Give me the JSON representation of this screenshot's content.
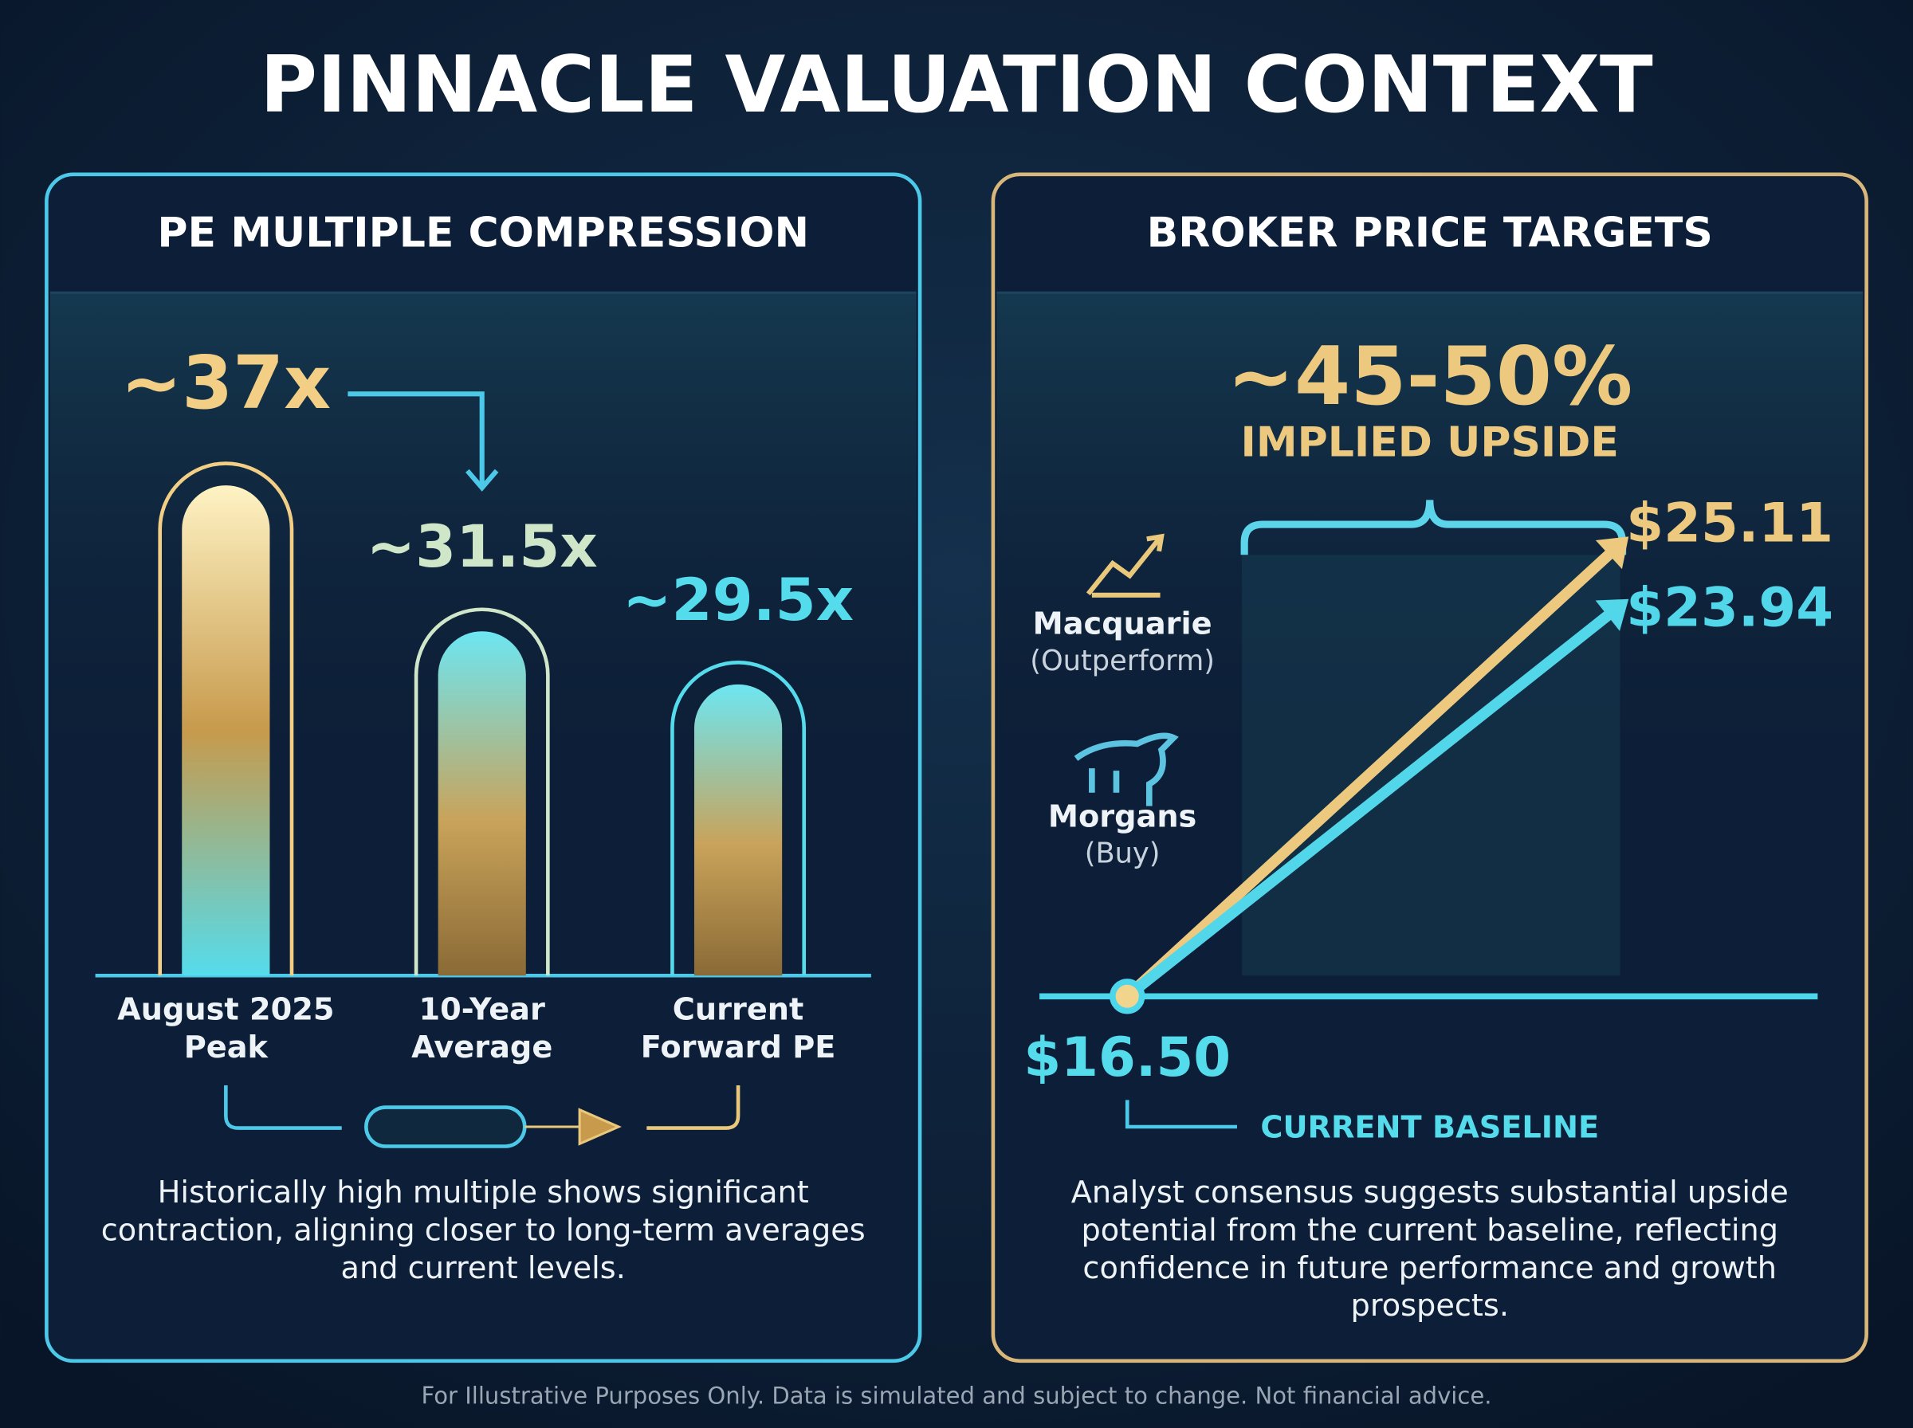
{
  "title": "PINNACLE VALUATION CONTEXT",
  "footer": "For Illustrative Purposes Only. Data is simulated and subject to change. Not financial advice.",
  "chart_data": [
    {
      "type": "bar",
      "title": "PE MULTIPLE COMPRESSION",
      "categories": [
        "August 2025 Peak",
        "10-Year Average",
        "Current Forward PE"
      ],
      "values": [
        37,
        31.5,
        29.5
      ],
      "value_labels": [
        "~37x",
        "~31.5x",
        "~29.5x"
      ],
      "colors": [
        "#f2cf85",
        "#cfe6c9",
        "#55dcec"
      ],
      "description": "Historically high multiple shows significant contraction, aligning closer to long-term averages and current levels."
    },
    {
      "type": "line",
      "title": "BROKER PRICE TARGETS",
      "annotation": "~45-50%",
      "annotation_text": "IMPLIED UPSIDE",
      "baseline": {
        "value": 16.5,
        "label": "$16.50",
        "caption": "CURRENT BASELINE"
      },
      "targets": [
        {
          "name": "Macquarie",
          "rating": "(Outperform)",
          "value": 25.11,
          "label": "$25.11",
          "color": "#ecc97e"
        },
        {
          "name": "Morgans",
          "rating": "(Buy)",
          "value": 23.94,
          "label": "$23.94",
          "color": "#52d6ea"
        }
      ],
      "description": "Analyst consensus suggests substantial upside potential from the current baseline, reflecting confidence in future performance and growth prospects."
    }
  ]
}
